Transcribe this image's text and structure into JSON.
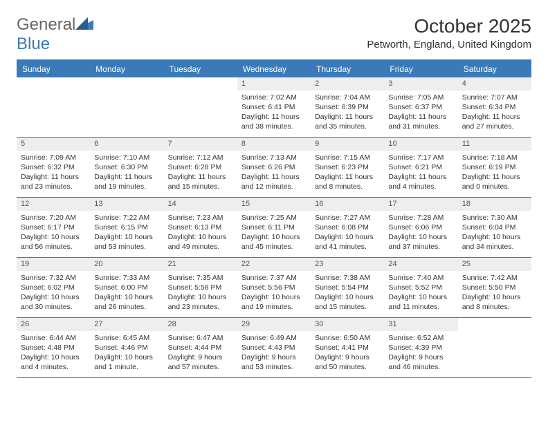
{
  "brand": {
    "general": "General",
    "blue": "Blue"
  },
  "header": {
    "title": "October 2025",
    "location": "Petworth, England, United Kingdom"
  },
  "colors": {
    "accent": "#3a7ab8",
    "header_text": "#ffffff",
    "body_text": "#333333",
    "daynum_bg": "#eeeeee",
    "background": "#ffffff"
  },
  "typography": {
    "title_fontsize": 28,
    "location_fontsize": 15,
    "weekday_fontsize": 12,
    "daynum_fontsize": 11,
    "cell_fontsize": 10.5
  },
  "weekdays": [
    "Sunday",
    "Monday",
    "Tuesday",
    "Wednesday",
    "Thursday",
    "Friday",
    "Saturday"
  ],
  "weeks": [
    [
      {
        "day": "",
        "empty": true
      },
      {
        "day": "",
        "empty": true
      },
      {
        "day": "",
        "empty": true
      },
      {
        "day": "1",
        "sunrise": "Sunrise: 7:02 AM",
        "sunset": "Sunset: 6:41 PM",
        "daylight1": "Daylight: 11 hours",
        "daylight2": "and 38 minutes."
      },
      {
        "day": "2",
        "sunrise": "Sunrise: 7:04 AM",
        "sunset": "Sunset: 6:39 PM",
        "daylight1": "Daylight: 11 hours",
        "daylight2": "and 35 minutes."
      },
      {
        "day": "3",
        "sunrise": "Sunrise: 7:05 AM",
        "sunset": "Sunset: 6:37 PM",
        "daylight1": "Daylight: 11 hours",
        "daylight2": "and 31 minutes."
      },
      {
        "day": "4",
        "sunrise": "Sunrise: 7:07 AM",
        "sunset": "Sunset: 6:34 PM",
        "daylight1": "Daylight: 11 hours",
        "daylight2": "and 27 minutes."
      }
    ],
    [
      {
        "day": "5",
        "sunrise": "Sunrise: 7:09 AM",
        "sunset": "Sunset: 6:32 PM",
        "daylight1": "Daylight: 11 hours",
        "daylight2": "and 23 minutes."
      },
      {
        "day": "6",
        "sunrise": "Sunrise: 7:10 AM",
        "sunset": "Sunset: 6:30 PM",
        "daylight1": "Daylight: 11 hours",
        "daylight2": "and 19 minutes."
      },
      {
        "day": "7",
        "sunrise": "Sunrise: 7:12 AM",
        "sunset": "Sunset: 6:28 PM",
        "daylight1": "Daylight: 11 hours",
        "daylight2": "and 15 minutes."
      },
      {
        "day": "8",
        "sunrise": "Sunrise: 7:13 AM",
        "sunset": "Sunset: 6:26 PM",
        "daylight1": "Daylight: 11 hours",
        "daylight2": "and 12 minutes."
      },
      {
        "day": "9",
        "sunrise": "Sunrise: 7:15 AM",
        "sunset": "Sunset: 6:23 PM",
        "daylight1": "Daylight: 11 hours",
        "daylight2": "and 8 minutes."
      },
      {
        "day": "10",
        "sunrise": "Sunrise: 7:17 AM",
        "sunset": "Sunset: 6:21 PM",
        "daylight1": "Daylight: 11 hours",
        "daylight2": "and 4 minutes."
      },
      {
        "day": "11",
        "sunrise": "Sunrise: 7:18 AM",
        "sunset": "Sunset: 6:19 PM",
        "daylight1": "Daylight: 11 hours",
        "daylight2": "and 0 minutes."
      }
    ],
    [
      {
        "day": "12",
        "sunrise": "Sunrise: 7:20 AM",
        "sunset": "Sunset: 6:17 PM",
        "daylight1": "Daylight: 10 hours",
        "daylight2": "and 56 minutes."
      },
      {
        "day": "13",
        "sunrise": "Sunrise: 7:22 AM",
        "sunset": "Sunset: 6:15 PM",
        "daylight1": "Daylight: 10 hours",
        "daylight2": "and 53 minutes."
      },
      {
        "day": "14",
        "sunrise": "Sunrise: 7:23 AM",
        "sunset": "Sunset: 6:13 PM",
        "daylight1": "Daylight: 10 hours",
        "daylight2": "and 49 minutes."
      },
      {
        "day": "15",
        "sunrise": "Sunrise: 7:25 AM",
        "sunset": "Sunset: 6:11 PM",
        "daylight1": "Daylight: 10 hours",
        "daylight2": "and 45 minutes."
      },
      {
        "day": "16",
        "sunrise": "Sunrise: 7:27 AM",
        "sunset": "Sunset: 6:08 PM",
        "daylight1": "Daylight: 10 hours",
        "daylight2": "and 41 minutes."
      },
      {
        "day": "17",
        "sunrise": "Sunrise: 7:28 AM",
        "sunset": "Sunset: 6:06 PM",
        "daylight1": "Daylight: 10 hours",
        "daylight2": "and 37 minutes."
      },
      {
        "day": "18",
        "sunrise": "Sunrise: 7:30 AM",
        "sunset": "Sunset: 6:04 PM",
        "daylight1": "Daylight: 10 hours",
        "daylight2": "and 34 minutes."
      }
    ],
    [
      {
        "day": "19",
        "sunrise": "Sunrise: 7:32 AM",
        "sunset": "Sunset: 6:02 PM",
        "daylight1": "Daylight: 10 hours",
        "daylight2": "and 30 minutes."
      },
      {
        "day": "20",
        "sunrise": "Sunrise: 7:33 AM",
        "sunset": "Sunset: 6:00 PM",
        "daylight1": "Daylight: 10 hours",
        "daylight2": "and 26 minutes."
      },
      {
        "day": "21",
        "sunrise": "Sunrise: 7:35 AM",
        "sunset": "Sunset: 5:58 PM",
        "daylight1": "Daylight: 10 hours",
        "daylight2": "and 23 minutes."
      },
      {
        "day": "22",
        "sunrise": "Sunrise: 7:37 AM",
        "sunset": "Sunset: 5:56 PM",
        "daylight1": "Daylight: 10 hours",
        "daylight2": "and 19 minutes."
      },
      {
        "day": "23",
        "sunrise": "Sunrise: 7:38 AM",
        "sunset": "Sunset: 5:54 PM",
        "daylight1": "Daylight: 10 hours",
        "daylight2": "and 15 minutes."
      },
      {
        "day": "24",
        "sunrise": "Sunrise: 7:40 AM",
        "sunset": "Sunset: 5:52 PM",
        "daylight1": "Daylight: 10 hours",
        "daylight2": "and 11 minutes."
      },
      {
        "day": "25",
        "sunrise": "Sunrise: 7:42 AM",
        "sunset": "Sunset: 5:50 PM",
        "daylight1": "Daylight: 10 hours",
        "daylight2": "and 8 minutes."
      }
    ],
    [
      {
        "day": "26",
        "sunrise": "Sunrise: 6:44 AM",
        "sunset": "Sunset: 4:48 PM",
        "daylight1": "Daylight: 10 hours",
        "daylight2": "and 4 minutes."
      },
      {
        "day": "27",
        "sunrise": "Sunrise: 6:45 AM",
        "sunset": "Sunset: 4:46 PM",
        "daylight1": "Daylight: 10 hours",
        "daylight2": "and 1 minute."
      },
      {
        "day": "28",
        "sunrise": "Sunrise: 6:47 AM",
        "sunset": "Sunset: 4:44 PM",
        "daylight1": "Daylight: 9 hours",
        "daylight2": "and 57 minutes."
      },
      {
        "day": "29",
        "sunrise": "Sunrise: 6:49 AM",
        "sunset": "Sunset: 4:43 PM",
        "daylight1": "Daylight: 9 hours",
        "daylight2": "and 53 minutes."
      },
      {
        "day": "30",
        "sunrise": "Sunrise: 6:50 AM",
        "sunset": "Sunset: 4:41 PM",
        "daylight1": "Daylight: 9 hours",
        "daylight2": "and 50 minutes."
      },
      {
        "day": "31",
        "sunrise": "Sunrise: 6:52 AM",
        "sunset": "Sunset: 4:39 PM",
        "daylight1": "Daylight: 9 hours",
        "daylight2": "and 46 minutes."
      },
      {
        "day": "",
        "empty": true
      }
    ]
  ]
}
